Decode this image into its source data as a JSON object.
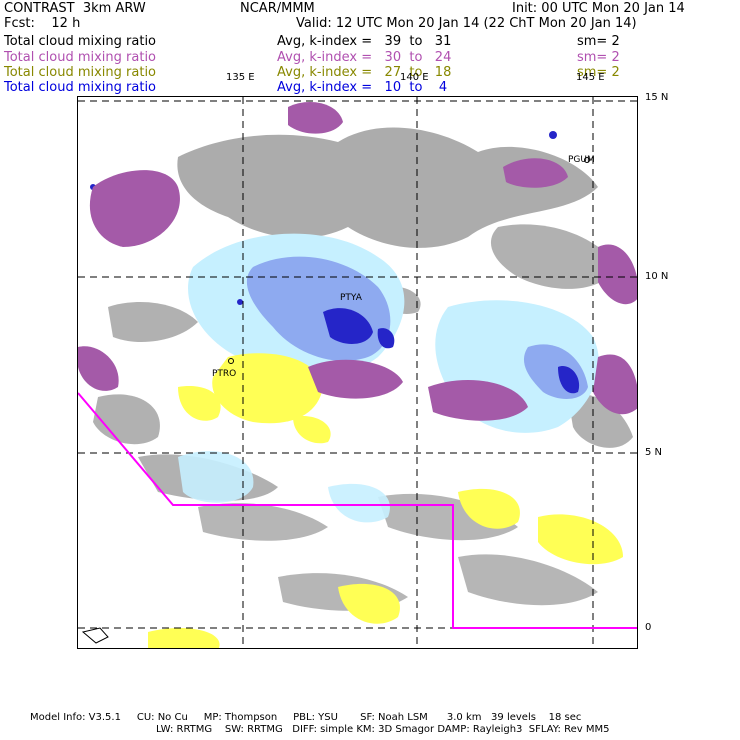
{
  "header": {
    "left_title": "CONTRAST  3km ARW",
    "center_title": "NCAR/MMM",
    "init": "Init: 00 UTC Mon 20 Jan 14",
    "fcst": "Fcst:    12 h",
    "valid": "Valid: 12 UTC Mon 20 Jan 14 (22 ChT Mon 20 Jan 14)"
  },
  "legend_rows": [
    {
      "field": "Total cloud mixing ratio",
      "range": "Avg, k-index =   39  to   31",
      "sm": "sm= 2",
      "color": "#000000"
    },
    {
      "field": "Total cloud mixing ratio",
      "range": "Avg, k-index =   30  to   24",
      "sm": "sm= 2",
      "color": "#b050b0"
    },
    {
      "field": "Total cloud mixing ratio",
      "range": "Avg, k-index =   27  to   18",
      "sm": "sm= 2",
      "color": "#888800"
    },
    {
      "field": "Total cloud mixing ratio",
      "range": "Avg, k-index =   10  to    4",
      "sm": "",
      "color": "#0000dd"
    }
  ],
  "axes": {
    "lon_labels": [
      "135 E",
      "140 E",
      "145 E"
    ],
    "lat_labels": [
      "15 N",
      "10 N",
      "5 N",
      "0"
    ]
  },
  "stations": [
    "PTYA",
    "PTRO",
    "PGUM"
  ],
  "colors": {
    "gray_cloud": "#9e9e9e",
    "purple_cloud": "#a45aa8",
    "yellow_cloud": "#ffff55",
    "light_blue": "#c6f0ff",
    "mid_blue": "#8eaaf0",
    "dark_blue": "#2525c8",
    "boundary": "#ff00ff"
  },
  "footer": {
    "line1": "Model Info: V3.5.1     CU: No Cu     MP: Thompson     PBL: YSU       SF: Noah LSM      3.0 km   39 levels    18 sec",
    "line2": "LW: RRTMG    SW: RRTMG   DIFF: simple KM: 3D Smagor DAMP: Rayleigh3  SFLAY: Rev MM5"
  }
}
